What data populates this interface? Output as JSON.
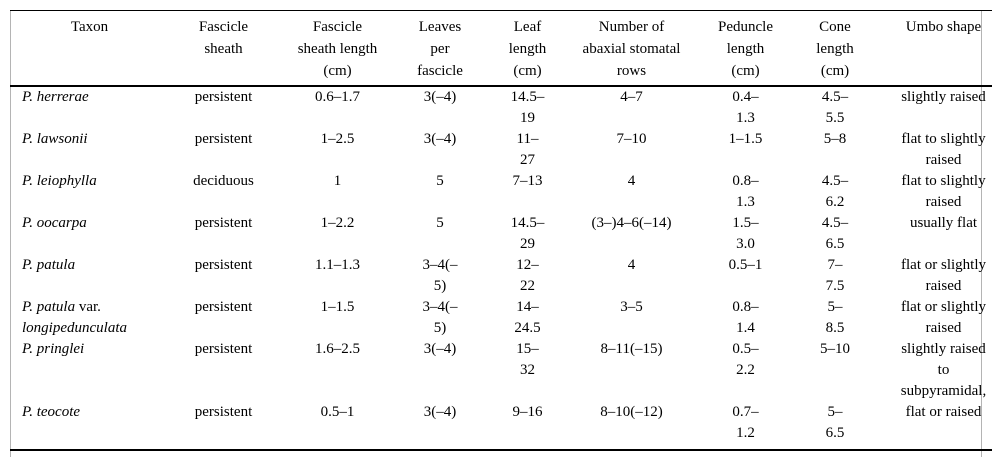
{
  "table": {
    "columns": [
      {
        "key": "taxon",
        "label": "Taxon"
      },
      {
        "key": "fascicle_sheath",
        "label": "Fascicle\nsheath"
      },
      {
        "key": "fascicle_sheath_length_cm",
        "label": "Fascicle\nsheath length\n(cm)"
      },
      {
        "key": "leaves_per_fascicle",
        "label": "Leaves\nper\nfascicle"
      },
      {
        "key": "leaf_length_cm",
        "label": "Leaf\nlength\n(cm)"
      },
      {
        "key": "abaxial_stomatal_rows",
        "label": "Number of\nabaxial stomatal\nrows"
      },
      {
        "key": "peduncle_length_cm",
        "label": "Peduncle\nlength\n(cm)"
      },
      {
        "key": "cone_length_cm",
        "label": "Cone\nlength\n(cm)"
      },
      {
        "key": "umbo_shape",
        "label": "Umbo shape"
      }
    ],
    "rows": [
      {
        "taxon_lines": [
          [
            {
              "text": "P. herrerae",
              "italic": true
            }
          ]
        ],
        "fascicle_sheath": "persistent",
        "fascicle_sheath_length_cm": "0.6–1.7",
        "leaves_per_fascicle": "3(–4)",
        "leaf_length_cm": "14.5–\n19",
        "abaxial_stomatal_rows": "4–7",
        "peduncle_length_cm": "0.4–\n1.3",
        "cone_length_cm": "4.5–\n5.5",
        "umbo_shape": "slightly raised"
      },
      {
        "taxon_lines": [
          [
            {
              "text": "P. lawsonii",
              "italic": true
            }
          ]
        ],
        "fascicle_sheath": "persistent",
        "fascicle_sheath_length_cm": "1–2.5",
        "leaves_per_fascicle": "3(–4)",
        "leaf_length_cm": "11–\n27",
        "abaxial_stomatal_rows": "7–10",
        "peduncle_length_cm": "1–1.5",
        "cone_length_cm": "5–8",
        "umbo_shape": "flat to slightly\nraised"
      },
      {
        "taxon_lines": [
          [
            {
              "text": "P. leiophylla",
              "italic": true
            }
          ]
        ],
        "fascicle_sheath": "deciduous",
        "fascicle_sheath_length_cm": "1",
        "leaves_per_fascicle": "5",
        "leaf_length_cm": "7–13",
        "abaxial_stomatal_rows": "4",
        "peduncle_length_cm": "0.8–\n1.3",
        "cone_length_cm": "4.5–\n6.2",
        "umbo_shape": "flat to slightly\nraised"
      },
      {
        "taxon_lines": [
          [
            {
              "text": "P. oocarpa",
              "italic": true
            }
          ]
        ],
        "fascicle_sheath": "persistent",
        "fascicle_sheath_length_cm": "1–2.2",
        "leaves_per_fascicle": "5",
        "leaf_length_cm": "14.5–\n29",
        "abaxial_stomatal_rows": "(3–)4–6(–14)",
        "peduncle_length_cm": "1.5–\n3.0",
        "cone_length_cm": "4.5–\n6.5",
        "umbo_shape": "usually flat"
      },
      {
        "taxon_lines": [
          [
            {
              "text": "P. patula",
              "italic": true
            }
          ]
        ],
        "fascicle_sheath": "persistent",
        "fascicle_sheath_length_cm": "1.1–1.3",
        "leaves_per_fascicle": "3–4(–\n5)",
        "leaf_length_cm": "12–\n22",
        "abaxial_stomatal_rows": "4",
        "peduncle_length_cm": "0.5–1",
        "cone_length_cm": "7–\n7.5",
        "umbo_shape": "flat or slightly\nraised"
      },
      {
        "taxon_lines": [
          [
            {
              "text": "P. patula",
              "italic": true
            },
            {
              "text": " var.",
              "italic": false
            }
          ],
          [
            {
              "text": "longipedunculata",
              "italic": true
            }
          ]
        ],
        "fascicle_sheath": "persistent",
        "fascicle_sheath_length_cm": "1–1.5",
        "leaves_per_fascicle": "3–4(–\n5)",
        "leaf_length_cm": "14–\n24.5",
        "abaxial_stomatal_rows": "3–5",
        "peduncle_length_cm": "0.8–\n1.4",
        "cone_length_cm": "5–\n8.5",
        "umbo_shape": "flat or slightly\nraised"
      },
      {
        "taxon_lines": [
          [
            {
              "text": "P. pringlei",
              "italic": true
            }
          ]
        ],
        "fascicle_sheath": "persistent",
        "fascicle_sheath_length_cm": "1.6–2.5",
        "leaves_per_fascicle": "3(–4)",
        "leaf_length_cm": "15–\n32",
        "abaxial_stomatal_rows": "8–11(–15)",
        "peduncle_length_cm": "0.5–\n2.2",
        "cone_length_cm": "5–10",
        "umbo_shape": "slightly raised\nto\nsubpyramidal,"
      },
      {
        "taxon_lines": [
          [
            {
              "text": "P. teocote",
              "italic": true
            }
          ]
        ],
        "fascicle_sheath": "persistent",
        "fascicle_sheath_length_cm": "0.5–1",
        "leaves_per_fascicle": "3(–4)",
        "leaf_length_cm": "9–16",
        "abaxial_stomatal_rows": "8–10(–12)",
        "peduncle_length_cm": "0.7–\n1.2",
        "cone_length_cm": "5–\n6.5",
        "umbo_shape": "flat or raised"
      }
    ]
  }
}
